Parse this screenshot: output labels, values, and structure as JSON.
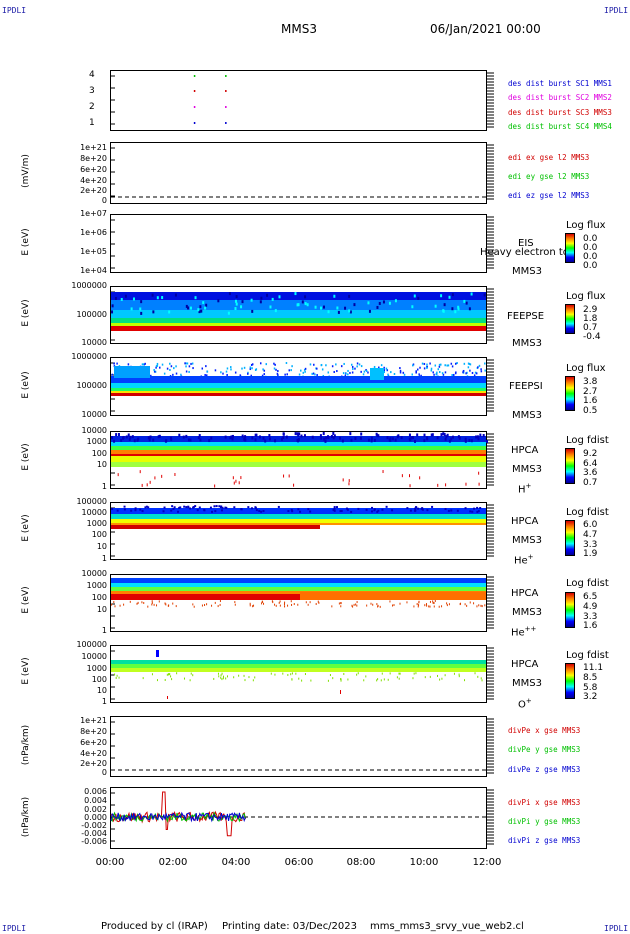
{
  "header": {
    "corner_label": "IPDLI",
    "spacecraft": "MMS3",
    "date_time": "06/Jan/2021 00:00"
  },
  "footer": {
    "produced_by": "Produced by cl (IRAP)",
    "printing_date": "Printing date: 03/Dec/2023",
    "plot_file": "mms_mms3_srvy_vue_web2.cl"
  },
  "x_axis": {
    "ticks": [
      "00:00",
      "02:00",
      "04:00",
      "06:00",
      "08:00",
      "10:00",
      "12:00"
    ]
  },
  "colors": {
    "red": "#d10000",
    "magenta": "#e000e0",
    "green": "#00c000",
    "blue": "#0000d0"
  },
  "panels": {
    "burst": {
      "ticks": [
        "4",
        "3",
        "2",
        "1"
      ],
      "legend": [
        "des dist burst SC1 MMS1",
        "des dist burst SC2 MMS2",
        "des dist burst SC3 MMS3",
        "des dist burst SC4 MMS4"
      ]
    },
    "edi": {
      "ylabel": "(mV/m)",
      "ticks": [
        "1e+21",
        "8e+20",
        "6e+20",
        "4e+20",
        "2e+20",
        "0"
      ],
      "legend": [
        "edi ex gse l2 MMS3",
        "edi ey gse l2 MMS3",
        "edi ez gse l2 MMS3"
      ]
    },
    "eis": {
      "ylabel": "E (eV)",
      "ticks": [
        "1e+07",
        "1e+06",
        "1e+05",
        "1e+04"
      ],
      "instrument": "EIS",
      "spacecraft": "MMS3",
      "overlay_text": "Heavy electron to",
      "cb_title": "Log flux",
      "cb_values": [
        "0.0",
        "0.0",
        "0.0",
        "0.0"
      ]
    },
    "feepse": {
      "ylabel": "E (eV)",
      "ticks": [
        "1000000",
        "100000",
        "10000"
      ],
      "instrument": "FEEPSE",
      "spacecraft": "MMS3",
      "cb_title": "Log flux",
      "cb_values": [
        "2.9",
        "1.8",
        "0.7",
        "-0.4"
      ]
    },
    "feepsi": {
      "ylabel": "E (eV)",
      "ticks": [
        "1000000",
        "100000",
        "10000"
      ],
      "instrument": "FEEPSI",
      "spacecraft": "MMS3",
      "cb_title": "Log flux",
      "cb_values": [
        "3.8",
        "2.7",
        "1.6",
        "0.5"
      ]
    },
    "hpca_h": {
      "ylabel": "E (eV)",
      "ticks": [
        "10000",
        "1000",
        "100",
        "10",
        "1"
      ],
      "instrument": "HPCA",
      "spacecraft": "MMS3",
      "species": "H",
      "charge": "+",
      "cb_title": "Log fdist",
      "cb_values": [
        "9.2",
        "6.4",
        "3.6",
        "0.7"
      ]
    },
    "hpca_he1": {
      "ylabel": "E (eV)",
      "ticks": [
        "100000",
        "10000",
        "1000",
        "100",
        "10",
        "1"
      ],
      "instrument": "HPCA",
      "spacecraft": "MMS3",
      "species": "He",
      "charge": "+",
      "cb_title": "Log fdist",
      "cb_values": [
        "6.0",
        "4.7",
        "3.3",
        "1.9"
      ]
    },
    "hpca_he2": {
      "ylabel": "E (eV)",
      "ticks": [
        "10000",
        "1000",
        "100",
        "10",
        "1"
      ],
      "instrument": "HPCA",
      "spacecraft": "MMS3",
      "species": "He",
      "charge": "++",
      "cb_title": "Log fdist",
      "cb_values": [
        "6.5",
        "4.9",
        "3.3",
        "1.6"
      ]
    },
    "hpca_o": {
      "ylabel": "E (eV)",
      "ticks": [
        "100000",
        "10000",
        "1000",
        "100",
        "10",
        "1"
      ],
      "instrument": "HPCA",
      "spacecraft": "MMS3",
      "species": "O",
      "charge": "+",
      "cb_title": "Log fdist",
      "cb_values": [
        "11.1",
        "8.5",
        "5.8",
        "3.2"
      ]
    },
    "divpe": {
      "ylabel": "(nPa/km)",
      "ticks": [
        "1e+21",
        "8e+20",
        "6e+20",
        "4e+20",
        "2e+20",
        "0"
      ],
      "legend": [
        "divPe x gse MMS3",
        "divPe y gse MMS3",
        "divPe z gse MMS3"
      ]
    },
    "divpi": {
      "ylabel": "(nPa/km)",
      "ticks": [
        "0.006",
        "0.004",
        "0.002",
        "0.000",
        "-0.002",
        "-0.004",
        "-0.006"
      ],
      "legend": [
        "divPi x gse MMS3",
        "divPi y gse MMS3",
        "divPi z gse MMS3"
      ]
    }
  },
  "chart_data": {
    "type": "line",
    "x_range": [
      "00:00",
      "12:00"
    ],
    "burst_intervals": [
      {
        "spacecraft": 1,
        "times": [
          "02:40",
          "03:40"
        ]
      },
      {
        "spacecraft": 2,
        "times": [
          "02:40",
          "03:40"
        ]
      },
      {
        "spacecraft": 3,
        "times": [
          "02:40",
          "03:40"
        ]
      },
      {
        "spacecraft": 4,
        "times": [
          "02:40",
          "03:40"
        ]
      }
    ],
    "divpi_series": [
      {
        "name": "divPi x gse MMS3",
        "x_end": "04:20",
        "approx_values": [
          0.0,
          0.001,
          -0.001,
          0.006,
          -0.004,
          0.001,
          0.0
        ]
      },
      {
        "name": "divPi y gse MMS3",
        "x_end": "04:20",
        "approx_values": [
          0.0,
          0.0005,
          -0.0005,
          0.001,
          -0.001,
          0.0
        ]
      },
      {
        "name": "divPi z gse MMS3",
        "x_end": "04:20",
        "approx_values": [
          0.0,
          0.001,
          -0.0008,
          0.0008,
          -0.001,
          0.0
        ]
      }
    ]
  }
}
